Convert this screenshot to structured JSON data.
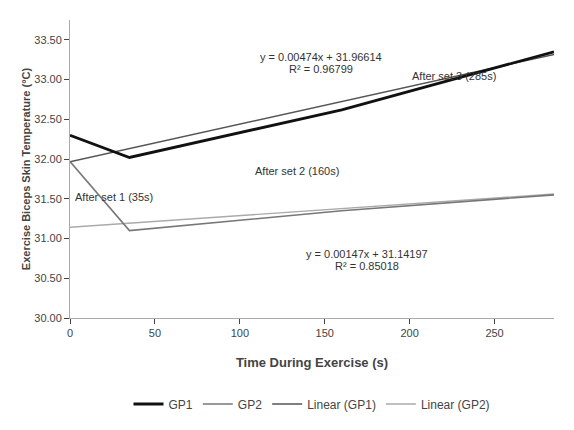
{
  "chart_data": {
    "type": "line",
    "xlabel": "Time During Exercise (s)",
    "ylabel": "Exercise Biceps Skin Temperature (°C)",
    "series": [
      {
        "name": "GP1",
        "color": "#111111",
        "x": [
          0,
          35,
          160,
          285
        ],
        "values": [
          32.3,
          32.02,
          32.62,
          33.35
        ]
      },
      {
        "name": "GP2",
        "color": "#777777",
        "x": [
          0,
          35,
          160,
          285
        ],
        "values": [
          31.97,
          31.1,
          31.35,
          31.55
        ]
      },
      {
        "name": "Linear (GP1)",
        "color": "#555555",
        "x": [
          0,
          285
        ],
        "values": [
          31.96614,
          33.31704
        ]
      },
      {
        "name": "Linear (GP2)",
        "color": "#aaaaaa",
        "x": [
          0,
          285
        ],
        "values": [
          31.14197,
          31.56092
        ]
      }
    ],
    "xlim": [
      0,
      285
    ],
    "xticks": [
      0,
      50,
      100,
      150,
      200,
      250
    ],
    "ylim": [
      30.0,
      33.75
    ],
    "yticks": [
      {
        "value": 30.0,
        "label": "30.00"
      },
      {
        "value": 30.5,
        "label": "30.50"
      },
      {
        "value": 31.0,
        "label": "31.00"
      },
      {
        "value": 31.5,
        "label": "31.50"
      },
      {
        "value": 32.0,
        "label": "32.00"
      },
      {
        "value": 32.5,
        "label": "32.50"
      },
      {
        "value": 33.0,
        "label": "33.00"
      },
      {
        "value": 33.5,
        "label": "33.50"
      }
    ],
    "annotations": [
      {
        "text": "y = 0.00474x + 31.96614",
        "x": 148,
        "y": 33.28,
        "align": "center"
      },
      {
        "text": "R² = 0.96799",
        "x": 148,
        "y": 33.13,
        "align": "center"
      },
      {
        "text": "y = 0.00147x + 31.14197",
        "x": 175,
        "y": 30.8,
        "align": "center"
      },
      {
        "text": "R² = 0.85018",
        "x": 175,
        "y": 30.65,
        "align": "center"
      },
      {
        "text": "After set 1 (35s)",
        "x": 2,
        "y": 31.52,
        "align": "left"
      },
      {
        "text": "After set 2 (160s)",
        "x": 108,
        "y": 31.85,
        "align": "left"
      },
      {
        "text": "After set 3 (285s)",
        "x": 200,
        "y": 33.05,
        "align": "left"
      }
    ],
    "grid": false,
    "legend": "bottom"
  }
}
